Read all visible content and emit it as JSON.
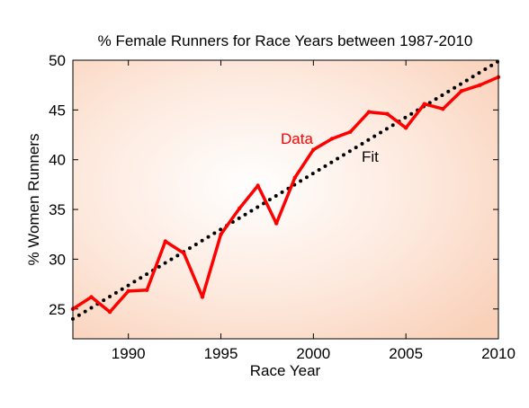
{
  "chart_data": {
    "type": "line",
    "title": "% Female Runners for Race Years between 1987-2010",
    "xlabel": "Race Year",
    "ylabel": "% Women Runners",
    "xlim": [
      1987,
      2010
    ],
    "ylim": [
      22,
      50
    ],
    "xticks": [
      1990,
      1995,
      2000,
      2005,
      2010
    ],
    "yticks": [
      25,
      30,
      35,
      40,
      45,
      50
    ],
    "grid": false,
    "background": "radial-gradient-peach",
    "series": [
      {
        "name": "Data",
        "style": "solid",
        "color": "#ff0000",
        "x": [
          1987,
          1988,
          1989,
          1990,
          1991,
          1992,
          1993,
          1994,
          1995,
          1996,
          1997,
          1998,
          1999,
          2000,
          2001,
          2002,
          2003,
          2004,
          2005,
          2006,
          2007,
          2008,
          2009,
          2010
        ],
        "y": [
          25.0,
          26.2,
          24.7,
          26.8,
          26.9,
          31.8,
          30.6,
          26.2,
          32.5,
          35.1,
          37.4,
          33.6,
          38.2,
          41.0,
          42.1,
          42.8,
          44.8,
          44.6,
          43.2,
          45.6,
          45.1,
          46.9,
          47.5,
          48.3
        ]
      },
      {
        "name": "Fit",
        "style": "dotted",
        "color": "#000000",
        "x": [
          1987,
          2010
        ],
        "y": [
          24.0,
          49.9
        ]
      }
    ],
    "annotations": [
      {
        "text": "Data",
        "series": 0,
        "color": "#ff0000"
      },
      {
        "text": "Fit",
        "series": 1,
        "color": "#000000"
      }
    ]
  }
}
